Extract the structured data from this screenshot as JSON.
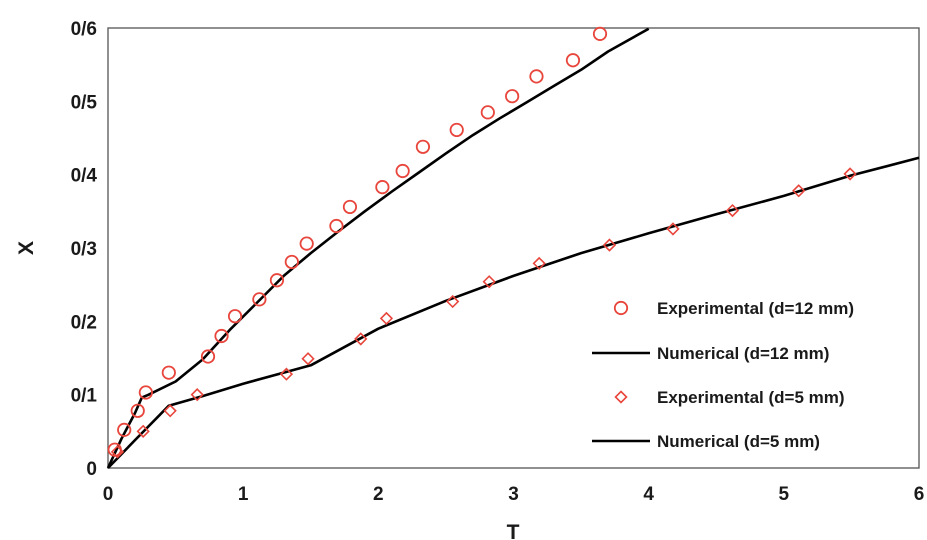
{
  "chart_data": {
    "type": "scatter",
    "title": "",
    "xlabel": "T",
    "ylabel": "X",
    "xlim": [
      0,
      6
    ],
    "ylim": [
      0,
      0.6
    ],
    "x_ticks": [
      0,
      1,
      2,
      3,
      4,
      5,
      6
    ],
    "x_tick_labels": [
      "0",
      "1",
      "2",
      "3",
      "4",
      "5",
      "6"
    ],
    "y_ticks": [
      0,
      0.1,
      0.2,
      0.3,
      0.4,
      0.5,
      0.6
    ],
    "y_tick_labels": [
      "0",
      "0/1",
      "0/2",
      "0/3",
      "0/4",
      "0/5",
      "0/6"
    ],
    "grid": false,
    "legend_position": "bottom-right",
    "colors": {
      "experimental": "#e8463c",
      "numerical": "#000000",
      "axis": "#555555"
    },
    "series": [
      {
        "name": "Experimental (d=12 mm)",
        "kind": "marker",
        "marker": "circle",
        "x": [
          0.05,
          0.12,
          0.22,
          0.28,
          0.45,
          0.74,
          0.84,
          0.94,
          1.12,
          1.25,
          1.36,
          1.47,
          1.69,
          1.79,
          2.03,
          2.18,
          2.33,
          2.58,
          2.81,
          2.99,
          3.17,
          3.44,
          3.64
        ],
        "y": [
          0.025,
          0.052,
          0.078,
          0.103,
          0.13,
          0.152,
          0.18,
          0.207,
          0.23,
          0.256,
          0.281,
          0.306,
          0.33,
          0.356,
          0.383,
          0.405,
          0.438,
          0.461,
          0.485,
          0.507,
          0.534,
          0.556,
          0.592
        ]
      },
      {
        "name": "Numerical (d=12 mm)",
        "kind": "line",
        "x": [
          0,
          0.1,
          0.2,
          0.25,
          0.3,
          0.5,
          0.7,
          0.9,
          1.1,
          1.3,
          1.5,
          1.7,
          1.9,
          2.1,
          2.3,
          2.5,
          2.7,
          2.9,
          3.1,
          3.3,
          3.5,
          3.7,
          4.0
        ],
        "y": [
          0,
          0.04,
          0.075,
          0.096,
          0.1,
          0.118,
          0.148,
          0.188,
          0.225,
          0.262,
          0.293,
          0.322,
          0.35,
          0.377,
          0.403,
          0.429,
          0.454,
          0.477,
          0.499,
          0.521,
          0.543,
          0.568,
          0.599
        ]
      },
      {
        "name": "Experimental (d=5 mm)",
        "kind": "marker",
        "marker": "diamond",
        "x": [
          0.07,
          0.26,
          0.46,
          0.66,
          1.32,
          1.48,
          1.87,
          2.06,
          2.55,
          2.82,
          3.19,
          3.71,
          4.18,
          4.62,
          5.11,
          5.49
        ],
        "y": [
          0.022,
          0.05,
          0.078,
          0.1,
          0.128,
          0.149,
          0.176,
          0.204,
          0.227,
          0.254,
          0.279,
          0.304,
          0.326,
          0.351,
          0.378,
          0.401
        ]
      },
      {
        "name": "Numerical (d=5 mm)",
        "kind": "line",
        "x": [
          0,
          0.2,
          0.45,
          0.7,
          1.0,
          1.5,
          2.0,
          2.5,
          3.0,
          3.5,
          4.0,
          4.5,
          5.0,
          5.5,
          6.0
        ],
        "y": [
          0,
          0.038,
          0.085,
          0.098,
          0.115,
          0.14,
          0.19,
          0.228,
          0.262,
          0.293,
          0.32,
          0.346,
          0.371,
          0.399,
          0.423
        ]
      }
    ],
    "legend_entries": [
      {
        "label": "Experimental (d=12 mm)",
        "symbol": "circle"
      },
      {
        "label": "Numerical (d=12 mm)",
        "symbol": "line"
      },
      {
        "label": "Experimental (d=5 mm)",
        "symbol": "diamond"
      },
      {
        "label": "Numerical (d=5 mm)",
        "symbol": "line"
      }
    ]
  }
}
